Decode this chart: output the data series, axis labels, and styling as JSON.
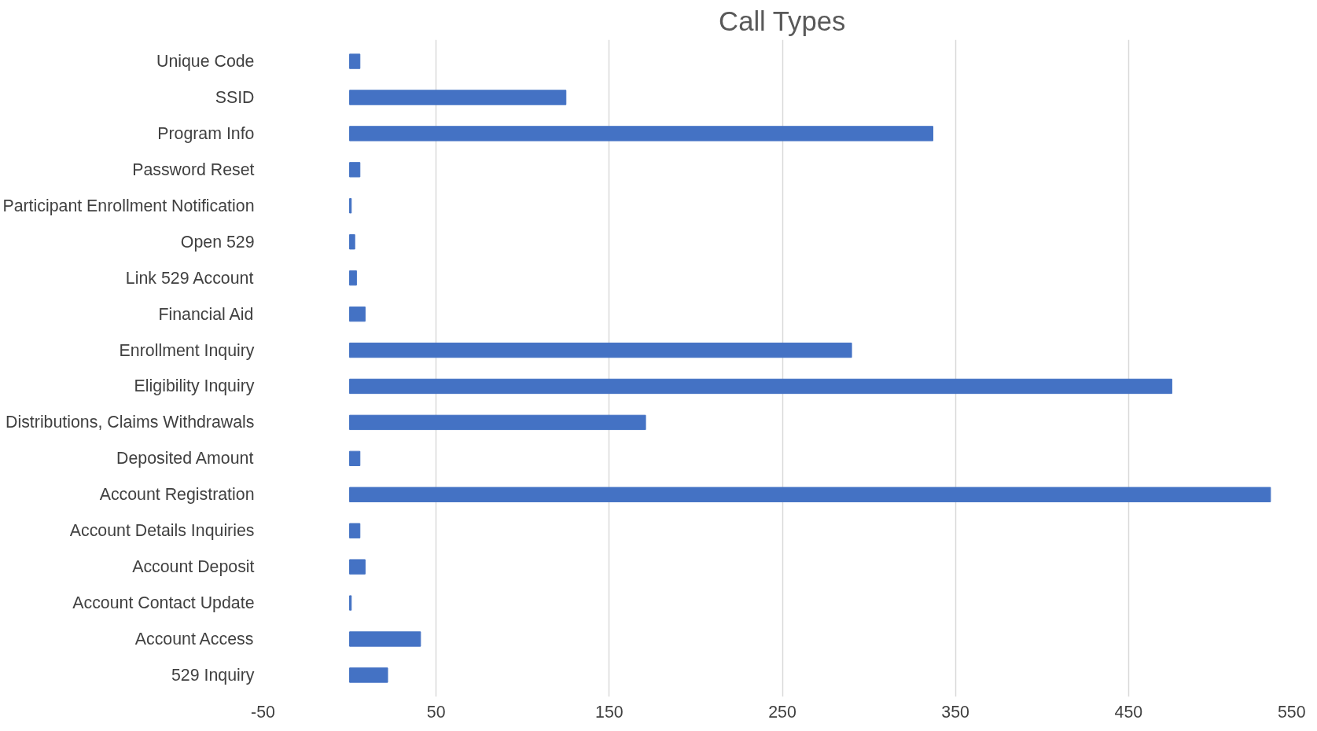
{
  "chart_data": {
    "type": "bar",
    "orientation": "horizontal",
    "title": "Call Types",
    "categories": [
      "Unique Code",
      "SSID",
      "Program Info",
      "Password Reset",
      "Participant Enrollment Notification",
      "Open 529",
      "Link 529 Account",
      "Financial Aid",
      "Enrollment Inquiry",
      "Eligibility Inquiry",
      "Distributions, Claims Withdrawals",
      "Deposited Amount",
      "Account Registration",
      "Account Details Inquiries",
      "Account Deposit",
      "Account Contact Update",
      "Account Access",
      "529 Inquiry"
    ],
    "values": [
      6,
      125,
      337,
      6,
      1,
      3,
      4,
      9,
      290,
      475,
      171,
      6,
      532,
      6,
      9,
      1,
      41,
      22
    ],
    "color": "#4472c4",
    "xlim": [
      -50,
      550
    ],
    "xticks": [
      -50,
      50,
      150,
      250,
      350,
      450,
      550
    ],
    "grid": "x"
  }
}
